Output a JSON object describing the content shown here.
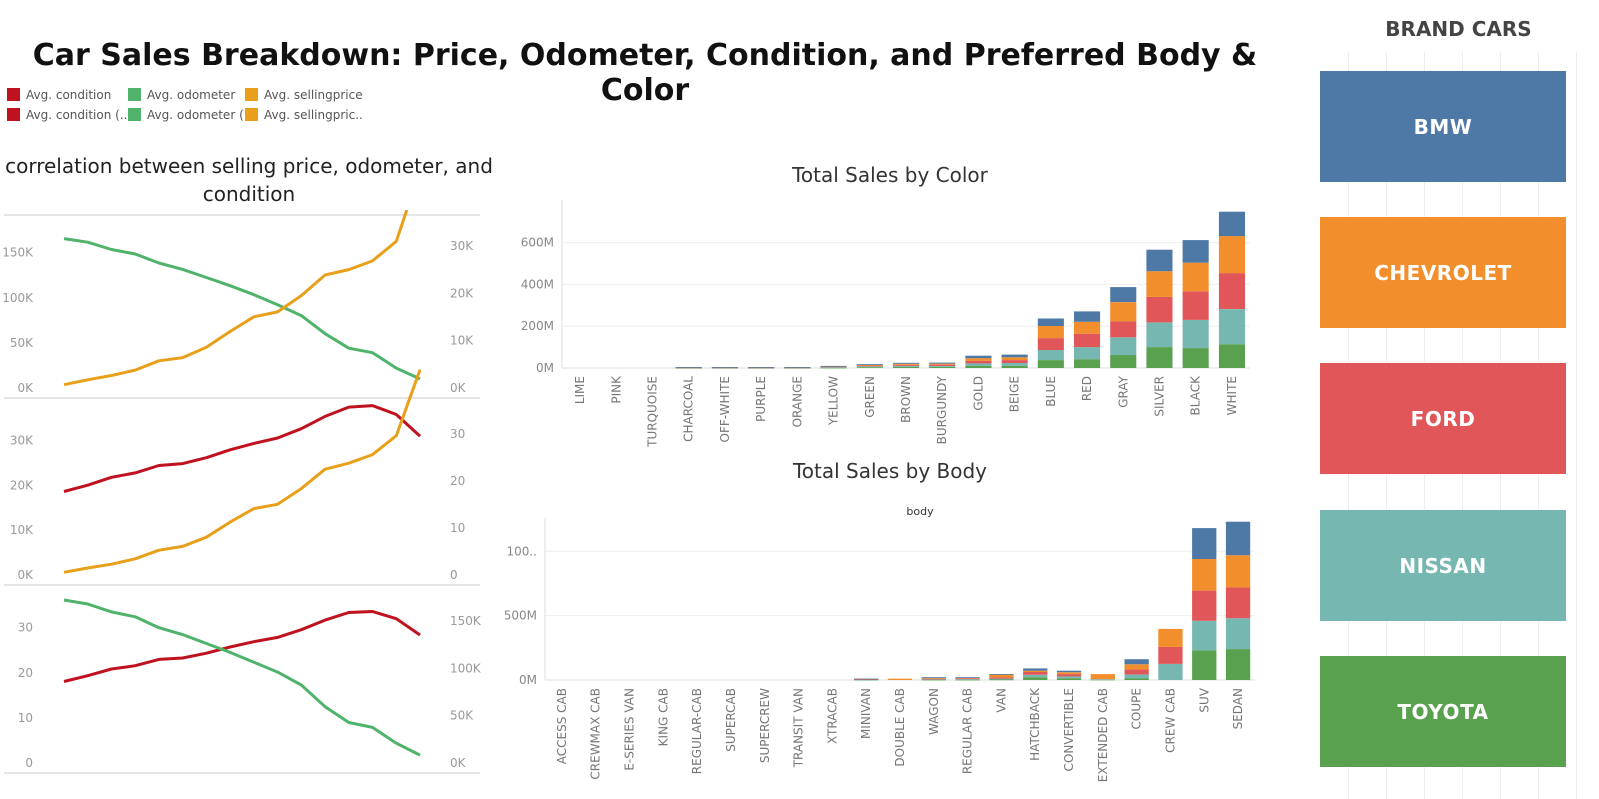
{
  "title": "Car Sales Breakdown: Price, Odometer, Condition, and Preferred Body & Color",
  "legend": [
    {
      "label": "Avg. condition",
      "color": "#c0111f"
    },
    {
      "label": "Avg. odometer",
      "color": "#4fb36b"
    },
    {
      "label": "Avg. sellingprice",
      "color": "#e8a01a"
    },
    {
      "label": "Avg. condition (..",
      "color": "#c0111f"
    },
    {
      "label": "Avg. odometer (..",
      "color": "#4fb36b"
    },
    {
      "label": "Avg. sellingpric..",
      "color": "#e8a01a"
    }
  ],
  "colors": {
    "condition": "#c0111f",
    "odometer": "#4fb36b",
    "sellingprice": "#e8a01a",
    "bmw": "#4e79a7",
    "chevrolet": "#f28e2b",
    "ford": "#e15759",
    "nissan": "#76b7b2",
    "toyota": "#59a14f"
  },
  "brand_panel": {
    "title": "BRAND CARS",
    "brands": [
      "BMW",
      "CHEVROLET",
      "FORD",
      "NISSAN",
      "TOYOTA"
    ]
  },
  "chart_data": [
    {
      "type": "line",
      "title": "correlation between selling price, odometer, and condition",
      "panels": [
        {
          "left_axis": {
            "ticks": [
              "0K",
              "50K",
              "100K",
              "150K"
            ],
            "range": [
              0,
              180000
            ]
          },
          "right_axis": {
            "ticks": [
              "0K",
              "10K",
              "20K",
              "30K"
            ],
            "range": [
              0,
              30000
            ]
          },
          "series": [
            {
              "measure": "odometer",
              "axis": "left",
              "values": [
                165000,
                161000,
                153000,
                148000,
                138000,
                131000,
                122000,
                113000,
                103000,
                92000,
                80000,
                60000,
                44000,
                39000,
                22000,
                10000
              ]
            },
            {
              "measure": "sellingprice",
              "axis": "right",
              "values": [
                600,
                1500,
                2300,
                3300,
                5000,
                5600,
                7500,
                10400,
                13100,
                14000,
                17000,
                20800,
                21800,
                23400,
                27000,
                40000
              ]
            }
          ]
        },
        {
          "left_axis": {
            "ticks": [
              "0K",
              "10K",
              "20K",
              "30K"
            ],
            "range": [
              0,
              30000
            ]
          },
          "right_axis": {
            "ticks": [
              "0",
              "10",
              "20",
              "30"
            ],
            "range": [
              0,
              33
            ]
          },
          "series": [
            {
              "measure": "condition",
              "axis": "right",
              "values": [
                17,
                18.3,
                19.9,
                20.8,
                22.3,
                22.7,
                23.9,
                25.5,
                26.8,
                27.9,
                29.8,
                32.3,
                34.2,
                34.5,
                32.7,
                28.3
              ]
            },
            {
              "measure": "sellingprice",
              "axis": "left",
              "values": [
                500,
                1300,
                2000,
                3000,
                4600,
                5300,
                7000,
                9800,
                12300,
                13100,
                16000,
                19600,
                20700,
                22300,
                25800,
                38000
              ]
            }
          ]
        },
        {
          "left_axis": {
            "ticks": [
              "0",
              "10",
              "20",
              "30"
            ],
            "range": [
              0,
              34
            ]
          },
          "right_axis": {
            "ticks": [
              "0K",
              "50K",
              "100K",
              "150K"
            ],
            "range": [
              0,
              165000
            ]
          },
          "series": [
            {
              "measure": "condition",
              "axis": "left",
              "values": [
                17,
                18.2,
                19.6,
                20.3,
                21.6,
                21.9,
                22.9,
                24.2,
                25.3,
                26.2,
                27.8,
                29.8,
                31.4,
                31.6,
                30.1,
                26.7
              ]
            },
            {
              "measure": "odometer",
              "axis": "right",
              "values": [
                165000,
                161000,
                153000,
                148000,
                137000,
                130000,
                121000,
                112000,
                102000,
                92000,
                79000,
                57000,
                41000,
                36000,
                20000,
                8000
              ]
            }
          ]
        }
      ]
    },
    {
      "type": "bar",
      "title": "Total Sales by Color",
      "categories": [
        "LIME",
        "PINK",
        "TURQUOISE",
        "CHARCOAL",
        "OFF-WHITE",
        "PURPLE",
        "ORANGE",
        "YELLOW",
        "GREEN",
        "BROWN",
        "BURGUNDY",
        "GOLD",
        "BEIGE",
        "BLUE",
        "RED",
        "GRAY",
        "SILVER",
        "BLACK",
        "WHITE"
      ],
      "yaxis": {
        "ticks": [
          "0M",
          "200M",
          "400M",
          "600M"
        ],
        "range": [
          0,
          780
        ]
      },
      "series": [
        {
          "brand": "toyota",
          "values": [
            0,
            0,
            0,
            1,
            1,
            1,
            1,
            2,
            4,
            5,
            5,
            10,
            11,
            38,
            42,
            62,
            100,
            95,
            114
          ]
        },
        {
          "brand": "nissan",
          "values": [
            0,
            0,
            0,
            1,
            1,
            1,
            1,
            2,
            4,
            5,
            5,
            12,
            13,
            48,
            58,
            85,
            118,
            135,
            168
          ]
        },
        {
          "brand": "ford",
          "values": [
            0,
            0,
            0,
            1,
            1,
            1,
            1,
            3,
            4,
            5,
            6,
            12,
            14,
            57,
            64,
            76,
            122,
            137,
            172
          ]
        },
        {
          "brand": "chevrolet",
          "values": [
            0,
            0,
            0,
            1,
            1,
            1,
            1,
            2,
            3,
            5,
            5,
            13,
            13,
            58,
            57,
            92,
            123,
            137,
            177
          ]
        },
        {
          "brand": "bmw",
          "values": [
            0,
            0,
            0,
            1,
            1,
            1,
            1,
            1,
            3,
            5,
            5,
            12,
            13,
            36,
            50,
            72,
            103,
            108,
            117
          ]
        }
      ]
    },
    {
      "type": "bar",
      "title": "Total Sales by Body",
      "subtitle": "body",
      "categories": [
        "ACCESS CAB",
        "CREWMAX CAB",
        "E-SERIES VAN",
        "KING CAB",
        "REGULAR-CAB",
        "SUPERCAB",
        "SUPERCREW",
        "TRANSIT VAN",
        "XTRACAB",
        "MINIVAN",
        "DOUBLE CAB",
        "WAGON",
        "REGULAR CAB",
        "VAN",
        "HATCHBACK",
        "CONVERTIBLE",
        "EXTENDED CAB",
        "COUPE",
        "CREW CAB",
        "SUV",
        "SEDAN"
      ],
      "yaxis": {
        "ticks": [
          "0M",
          "500M",
          "100.."
        ],
        "range": [
          0,
          1220
        ]
      },
      "series": [
        {
          "brand": "toyota",
          "values": [
            0,
            0,
            0,
            0,
            0,
            0,
            0,
            0,
            0,
            2,
            0,
            3,
            3,
            5,
            22,
            14,
            4,
            12,
            0,
            230,
            240
          ]
        },
        {
          "brand": "nissan",
          "values": [
            0,
            0,
            0,
            0,
            0,
            0,
            0,
            0,
            0,
            2,
            0,
            4,
            4,
            5,
            18,
            14,
            2,
            30,
            125,
            230,
            240
          ]
        },
        {
          "brand": "ford",
          "values": [
            0,
            0,
            0,
            0,
            0,
            0,
            0,
            0,
            0,
            2,
            0,
            4,
            6,
            10,
            22,
            18,
            0,
            40,
            132,
            235,
            240
          ]
        },
        {
          "brand": "chevrolet",
          "values": [
            0,
            0,
            0,
            0,
            0,
            0,
            0,
            0,
            0,
            3,
            10,
            4,
            6,
            22,
            10,
            14,
            40,
            40,
            140,
            245,
            250
          ]
        },
        {
          "brand": "bmw",
          "values": [
            0,
            0,
            0,
            0,
            0,
            0,
            0,
            0,
            0,
            2,
            0,
            7,
            3,
            5,
            18,
            12,
            0,
            40,
            0,
            240,
            260
          ]
        }
      ]
    }
  ]
}
